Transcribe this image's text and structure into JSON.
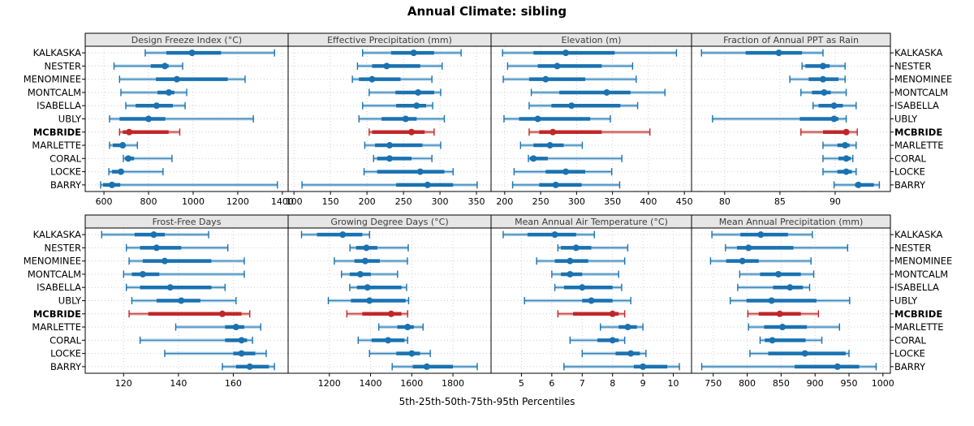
{
  "title": "Annual Climate: sibling",
  "caption": "5th-25th-50th-75th-95th Percentiles",
  "sites": [
    "KALKASKA",
    "NESTER",
    "MENOMINEE",
    "MONTCALM",
    "ISABELLA",
    "UBLY",
    "MCBRIDE",
    "MARLETTE",
    "CORAL",
    "LOCKE",
    "BARRY"
  ],
  "highlight_site": "MCBRIDE",
  "colors": {
    "series_main": "#1a72b0",
    "series_light": "#9dc6e0",
    "highlight_main": "#c02728",
    "highlight_light": "#e4a29f",
    "strip_bg": "#e6e6e6",
    "panel_border": "#000000",
    "grid": "#cfcfcf",
    "tick_label": "#000000",
    "strip_text": "#3c3c3c"
  },
  "chart_data": [
    {
      "type": "dotplot-percentiles",
      "title": "Design Freeze Index (°C)",
      "row": 0,
      "col": 0,
      "xlim": [
        516,
        1426
      ],
      "ticks": [
        600,
        800,
        1000,
        1200,
        1400
      ],
      "percentile_labels": [
        "p5",
        "p25",
        "p50",
        "p75",
        "p95"
      ],
      "values": [
        [
          785,
          880,
          995,
          1125,
          1365
        ],
        [
          645,
          810,
          873,
          890,
          953
        ],
        [
          670,
          833,
          927,
          1155,
          1233
        ],
        [
          676,
          840,
          891,
          916,
          971
        ],
        [
          698,
          742,
          836,
          909,
          964
        ],
        [
          625,
          670,
          800,
          875,
          1270
        ],
        [
          670,
          685,
          713,
          890,
          940
        ],
        [
          625,
          640,
          684,
          692,
          750
        ],
        [
          687,
          695,
          709,
          735,
          905
        ],
        [
          622,
          636,
          676,
          687,
          865
        ],
        [
          585,
          596,
          636,
          673,
          1378
        ]
      ]
    },
    {
      "type": "dotplot-percentiles",
      "title": "Effective Precipitation (mm)",
      "row": 0,
      "col": 1,
      "xlim": [
        92,
        370
      ],
      "ticks": [
        100,
        150,
        200,
        250,
        300,
        350
      ],
      "values": [
        [
          194,
          233,
          264,
          292,
          329
        ],
        [
          187,
          207,
          227,
          273,
          303
        ],
        [
          180,
          189,
          207,
          246,
          289
        ],
        [
          203,
          239,
          270,
          292,
          301
        ],
        [
          194,
          240,
          268,
          281,
          290
        ],
        [
          189,
          220,
          253,
          268,
          306
        ],
        [
          203,
          207,
          261,
          279,
          292
        ],
        [
          197,
          211,
          231,
          276,
          301
        ],
        [
          209,
          214,
          231,
          261,
          289
        ],
        [
          196,
          214,
          273,
          306,
          318
        ],
        [
          111,
          240,
          283,
          318,
          351
        ]
      ]
    },
    {
      "type": "dotplot-percentiles",
      "title": "Elevation (m)",
      "row": 0,
      "col": 2,
      "xlim": [
        181,
        460
      ],
      "ticks": [
        200,
        250,
        300,
        350,
        400,
        450
      ],
      "values": [
        [
          197,
          240,
          285,
          353,
          439
        ],
        [
          204,
          246,
          273,
          335,
          378
        ],
        [
          198,
          234,
          257,
          312,
          383
        ],
        [
          237,
          276,
          342,
          375,
          423
        ],
        [
          234,
          265,
          293,
          361,
          385
        ],
        [
          199,
          220,
          246,
          319,
          347
        ],
        [
          234,
          248,
          267,
          335,
          402
        ],
        [
          222,
          240,
          263,
          282,
          308
        ],
        [
          233,
          235,
          240,
          260,
          363
        ],
        [
          213,
          257,
          285,
          312,
          349
        ],
        [
          211,
          248,
          271,
          307,
          360
        ]
      ]
    },
    {
      "type": "dotplot-percentiles",
      "title": "Fraction of Annual PPT as Rain",
      "row": 0,
      "col": 3,
      "xlim": [
        77,
        95
      ],
      "ticks": [
        80,
        85,
        90
      ],
      "values": [
        [
          77.9,
          81.9,
          84.9,
          87.0,
          88.9
        ],
        [
          87.0,
          87.3,
          88.9,
          89.5,
          90.9
        ],
        [
          85.9,
          87.6,
          88.9,
          90.3,
          90.9
        ],
        [
          86.9,
          87.9,
          89.0,
          89.6,
          91.0
        ],
        [
          88.0,
          88.5,
          89.9,
          90.7,
          91.9
        ],
        [
          78.9,
          86.8,
          89.9,
          90.3,
          91.0
        ],
        [
          86.9,
          88.9,
          91.0,
          91.2,
          92.0
        ],
        [
          88.9,
          90.2,
          90.9,
          91.3,
          91.9
        ],
        [
          88.9,
          90.3,
          91.0,
          91.4,
          91.6
        ],
        [
          88.9,
          90.2,
          91.0,
          91.5,
          91.9
        ],
        [
          89.9,
          91.8,
          92.1,
          93.5,
          94.0
        ]
      ]
    },
    {
      "type": "dotplot-percentiles",
      "title": "Frost-Free Days",
      "row": 1,
      "col": 0,
      "xlim": [
        106,
        180
      ],
      "ticks": [
        120,
        140,
        160
      ],
      "values": [
        [
          112,
          124,
          131,
          135,
          151
        ],
        [
          121,
          126,
          132,
          141,
          158
        ],
        [
          122,
          127,
          135,
          152,
          164
        ],
        [
          120,
          123,
          127,
          133,
          164
        ],
        [
          121,
          126,
          137,
          152,
          157
        ],
        [
          123,
          132,
          141,
          148,
          161
        ],
        [
          122,
          129,
          156,
          163,
          166
        ],
        [
          139,
          157,
          161,
          164,
          170
        ],
        [
          126,
          157,
          163,
          165,
          167
        ],
        [
          135,
          160,
          163,
          168,
          172
        ],
        [
          156,
          161,
          166,
          173,
          175
        ]
      ]
    },
    {
      "type": "dotplot-percentiles",
      "title": "Growing Degree Days (°C)",
      "row": 1,
      "col": 1,
      "xlim": [
        1000,
        1985
      ],
      "ticks": [
        1200,
        1400,
        1600,
        1800
      ],
      "values": [
        [
          1065,
          1140,
          1265,
          1360,
          1395
        ],
        [
          1300,
          1330,
          1380,
          1433,
          1583
        ],
        [
          1224,
          1322,
          1374,
          1445,
          1579
        ],
        [
          1259,
          1299,
          1350,
          1401,
          1531
        ],
        [
          1299,
          1334,
          1385,
          1550,
          1575
        ],
        [
          1195,
          1305,
          1395,
          1570,
          1585
        ],
        [
          1285,
          1360,
          1500,
          1550,
          1580
        ],
        [
          1440,
          1530,
          1580,
          1610,
          1655
        ],
        [
          1340,
          1405,
          1485,
          1565,
          1580
        ],
        [
          1395,
          1525,
          1600,
          1640,
          1690
        ],
        [
          1505,
          1605,
          1673,
          1800,
          1918
        ]
      ]
    },
    {
      "type": "dotplot-percentiles",
      "title": "Mean Annual Air Temperature (°C)",
      "row": 1,
      "col": 2,
      "xlim": [
        4.0,
        10.6
      ],
      "ticks": [
        5,
        6,
        7,
        8,
        9,
        10
      ],
      "values": [
        [
          4.4,
          5.2,
          6.1,
          6.8,
          7.4
        ],
        [
          6.2,
          6.3,
          6.8,
          7.3,
          8.5
        ],
        [
          5.5,
          6.1,
          6.6,
          7.2,
          8.4
        ],
        [
          6.0,
          6.3,
          6.6,
          7.0,
          8.2
        ],
        [
          6.1,
          6.4,
          7.0,
          8.0,
          8.3
        ],
        [
          5.1,
          7.0,
          7.3,
          8.0,
          8.6
        ],
        [
          6.2,
          6.7,
          8.0,
          8.2,
          8.4
        ],
        [
          7.6,
          8.2,
          8.5,
          8.8,
          9.0
        ],
        [
          6.6,
          7.5,
          8.0,
          8.2,
          8.4
        ],
        [
          7.0,
          8.1,
          8.6,
          8.9,
          9.1
        ],
        [
          6.4,
          8.7,
          9.0,
          9.8,
          10.2
        ]
      ]
    },
    {
      "type": "dotplot-percentiles",
      "title": "Mean Annual Precipitation (mm)",
      "row": 1,
      "col": 3,
      "xlim": [
        718,
        1011
      ],
      "ticks": [
        750,
        800,
        850,
        900,
        950,
        1000
      ],
      "values": [
        [
          748,
          790,
          820,
          860,
          896
        ],
        [
          768,
          785,
          802,
          868,
          948
        ],
        [
          746,
          769,
          793,
          817,
          894
        ],
        [
          789,
          819,
          846,
          879,
          898
        ],
        [
          786,
          838,
          863,
          882,
          892
        ],
        [
          775,
          799,
          836,
          902,
          951
        ],
        [
          801,
          817,
          848,
          879,
          905
        ],
        [
          802,
          825,
          852,
          888,
          936
        ],
        [
          819,
          826,
          837,
          886,
          910
        ],
        [
          804,
          831,
          885,
          945,
          950
        ],
        [
          733,
          870,
          933,
          965,
          990
        ]
      ]
    }
  ]
}
